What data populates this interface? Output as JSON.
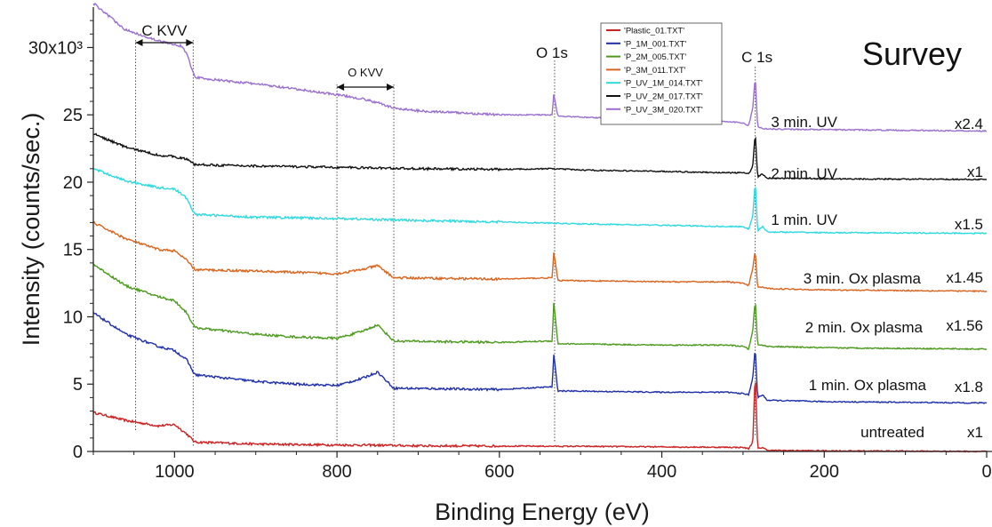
{
  "chart_data": {
    "type": "line",
    "title": "Survey",
    "xlabel": "Binding Energy (eV)",
    "ylabel": "Intensity (counts/sec.)",
    "xlim": [
      1100,
      0
    ],
    "ylim": [
      0,
      33000
    ],
    "x_reversed": true,
    "x_ticks": [
      1000,
      800,
      600,
      400,
      200,
      0
    ],
    "x_tick_labels": [
      "1000",
      "800",
      "600",
      "400",
      "200",
      "0"
    ],
    "y_ticks": [
      0,
      5000,
      10000,
      15000,
      20000,
      25000,
      30000
    ],
    "y_tick_labels": [
      "0",
      "5",
      "10",
      "15",
      "20",
      "25",
      "30x10³"
    ],
    "grid": false,
    "legend_position": "top-center",
    "peaks": {
      "o1s": {
        "label": "O 1s",
        "x": 532
      },
      "c1s": {
        "label": "C 1s",
        "x": 285
      }
    },
    "regions": [
      {
        "label": "C KVV",
        "from": 1048,
        "to": 977
      },
      {
        "label": "O KVV",
        "from": 800,
        "to": 730
      }
    ],
    "series": [
      {
        "name": "'Plastic_01.TXT'",
        "color": "#cc2222",
        "annotation": "untreated",
        "scale": "x1",
        "points": [
          [
            1100,
            2900
          ],
          [
            1060,
            2300
          ],
          [
            1020,
            1900
          ],
          [
            1000,
            2000
          ],
          [
            985,
            1300
          ],
          [
            975,
            700
          ],
          [
            900,
            550
          ],
          [
            800,
            480
          ],
          [
            760,
            470
          ],
          [
            700,
            420
          ],
          [
            600,
            400
          ],
          [
            500,
            380
          ],
          [
            400,
            340
          ],
          [
            300,
            300
          ],
          [
            293,
            200
          ],
          [
            288,
            700
          ],
          [
            285,
            5900
          ],
          [
            282,
            200
          ],
          [
            276,
            300
          ],
          [
            270,
            80
          ],
          [
            200,
            50
          ],
          [
            0,
            0
          ]
        ],
        "o1s": 0,
        "okvv": 0
      },
      {
        "name": "'P_1M_001.TXT'",
        "color": "#1f2fa8",
        "annotation": "1 min. Ox plasma",
        "scale": "x1.8",
        "points": [
          [
            1100,
            10300
          ],
          [
            1060,
            8700
          ],
          [
            1020,
            7800
          ],
          [
            1000,
            7500
          ],
          [
            985,
            6800
          ],
          [
            975,
            5700
          ],
          [
            900,
            5200
          ],
          [
            850,
            5000
          ],
          [
            800,
            4900
          ],
          [
            770,
            5400
          ],
          [
            750,
            5900
          ],
          [
            730,
            4700
          ],
          [
            600,
            4600
          ],
          [
            535,
            4800
          ],
          [
            533,
            7200
          ],
          [
            528,
            4500
          ],
          [
            400,
            4400
          ],
          [
            320,
            4400
          ],
          [
            300,
            4300
          ],
          [
            293,
            4200
          ],
          [
            288,
            5500
          ],
          [
            285,
            7700
          ],
          [
            282,
            4000
          ],
          [
            276,
            4200
          ],
          [
            270,
            3800
          ],
          [
            200,
            3700
          ],
          [
            0,
            3600
          ]
        ],
        "o1s": 1,
        "okvv": 1
      },
      {
        "name": "'P_2M_005.TXT'",
        "color": "#4c9a1e",
        "annotation": "2 min. Ox plasma",
        "scale": "x1.56",
        "points": [
          [
            1100,
            13900
          ],
          [
            1060,
            12300
          ],
          [
            1020,
            11500
          ],
          [
            1000,
            11200
          ],
          [
            985,
            10300
          ],
          [
            975,
            9200
          ],
          [
            900,
            8700
          ],
          [
            850,
            8500
          ],
          [
            800,
            8400
          ],
          [
            770,
            8900
          ],
          [
            750,
            9400
          ],
          [
            730,
            8200
          ],
          [
            600,
            8100
          ],
          [
            535,
            8200
          ],
          [
            533,
            11100
          ],
          [
            528,
            8000
          ],
          [
            400,
            7900
          ],
          [
            320,
            7900
          ],
          [
            300,
            7800
          ],
          [
            293,
            7600
          ],
          [
            288,
            9000
          ],
          [
            285,
            11300
          ],
          [
            282,
            7900
          ],
          [
            276,
            7900
          ],
          [
            270,
            7800
          ],
          [
            200,
            7700
          ],
          [
            0,
            7600
          ]
        ],
        "o1s": 1,
        "okvv": 1
      },
      {
        "name": "'P_3M_011.TXT'",
        "color": "#d9641e",
        "annotation": "3 min. Ox plasma",
        "scale": "x1.45",
        "points": [
          [
            1100,
            17000
          ],
          [
            1060,
            15800
          ],
          [
            1020,
            15000
          ],
          [
            1000,
            14900
          ],
          [
            985,
            14200
          ],
          [
            975,
            13500
          ],
          [
            900,
            13400
          ],
          [
            850,
            13300
          ],
          [
            800,
            13200
          ],
          [
            770,
            13500
          ],
          [
            750,
            13800
          ],
          [
            730,
            12900
          ],
          [
            600,
            12800
          ],
          [
            535,
            12900
          ],
          [
            533,
            14800
          ],
          [
            528,
            12700
          ],
          [
            400,
            12600
          ],
          [
            320,
            12600
          ],
          [
            300,
            12500
          ],
          [
            293,
            12300
          ],
          [
            288,
            13600
          ],
          [
            285,
            14900
          ],
          [
            282,
            12200
          ],
          [
            276,
            12200
          ],
          [
            270,
            12100
          ],
          [
            200,
            12000
          ],
          [
            0,
            11900
          ]
        ],
        "o1s": 1,
        "okvv": 1
      },
      {
        "name": "'P_UV_1M_014.TXT'",
        "color": "#2ed9e0",
        "annotation": "1 min. UV",
        "scale": "x1.5",
        "points": [
          [
            1100,
            21000
          ],
          [
            1060,
            20100
          ],
          [
            1020,
            19600
          ],
          [
            1000,
            19500
          ],
          [
            985,
            18800
          ],
          [
            975,
            17600
          ],
          [
            900,
            17400
          ],
          [
            800,
            17300
          ],
          [
            700,
            17150
          ],
          [
            600,
            17050
          ],
          [
            500,
            16900
          ],
          [
            400,
            16800
          ],
          [
            320,
            16700
          ],
          [
            300,
            16700
          ],
          [
            293,
            16500
          ],
          [
            288,
            17500
          ],
          [
            285,
            20100
          ],
          [
            282,
            16400
          ],
          [
            276,
            16700
          ],
          [
            270,
            16300
          ],
          [
            200,
            16250
          ],
          [
            0,
            16200
          ]
        ],
        "o1s": 0,
        "okvv": 0
      },
      {
        "name": "'P_UV_2M_017.TXT'",
        "color": "#111111",
        "annotation": "2 min. UV",
        "scale": "x1",
        "points": [
          [
            1100,
            23600
          ],
          [
            1060,
            22600
          ],
          [
            1020,
            22000
          ],
          [
            1000,
            21900
          ],
          [
            985,
            21700
          ],
          [
            975,
            21300
          ],
          [
            900,
            21200
          ],
          [
            800,
            21100
          ],
          [
            700,
            21000
          ],
          [
            600,
            20950
          ],
          [
            533,
            21000
          ],
          [
            500,
            20900
          ],
          [
            400,
            20800
          ],
          [
            320,
            20700
          ],
          [
            300,
            20700
          ],
          [
            293,
            20600
          ],
          [
            288,
            21200
          ],
          [
            285,
            23700
          ],
          [
            282,
            20400
          ],
          [
            276,
            20600
          ],
          [
            270,
            20300
          ],
          [
            200,
            20250
          ],
          [
            0,
            20200
          ]
        ],
        "o1s": 0,
        "okvv": 0
      },
      {
        "name": "'P_UV_3M_020.TXT'",
        "color": "#9a6fcf",
        "annotation": "3 min. UV",
        "scale": "x2.4",
        "points": [
          [
            1100,
            33300
          ],
          [
            1060,
            31300
          ],
          [
            1020,
            30500
          ],
          [
            1000,
            30200
          ],
          [
            990,
            30100
          ],
          [
            985,
            29500
          ],
          [
            975,
            27800
          ],
          [
            950,
            27600
          ],
          [
            900,
            27300
          ],
          [
            850,
            26900
          ],
          [
            800,
            26500
          ],
          [
            770,
            26200
          ],
          [
            750,
            25900
          ],
          [
            730,
            25500
          ],
          [
            700,
            25300
          ],
          [
            600,
            25000
          ],
          [
            535,
            25000
          ],
          [
            533,
            26500
          ],
          [
            528,
            24900
          ],
          [
            400,
            24600
          ],
          [
            320,
            24500
          ],
          [
            300,
            24400
          ],
          [
            293,
            24200
          ],
          [
            288,
            25500
          ],
          [
            285,
            27900
          ],
          [
            282,
            24100
          ],
          [
            276,
            24000
          ],
          [
            270,
            23950
          ],
          [
            200,
            23900
          ],
          [
            0,
            23800
          ]
        ],
        "o1s": 1,
        "okvv": 1
      }
    ]
  }
}
